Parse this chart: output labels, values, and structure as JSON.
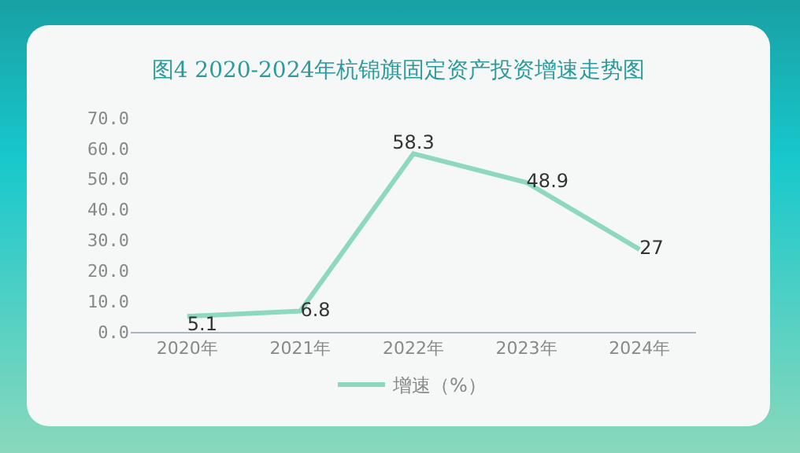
{
  "chart_data": {
    "type": "line",
    "title": "图4 2020-2024年杭锦旗固定资产投资增速走势图",
    "categories": [
      "2020年",
      "2021年",
      "2022年",
      "2023年",
      "2024年"
    ],
    "series": [
      {
        "name": "增速（%）",
        "color": "#8ed8c0",
        "values": [
          5.1,
          6.8,
          58.3,
          48.9,
          27
        ]
      }
    ],
    "ylim": [
      0,
      70
    ],
    "yticks": [
      {
        "value": 0,
        "label": "0.0"
      },
      {
        "value": 10,
        "label": "10.0"
      },
      {
        "value": 20,
        "label": "20.0"
      },
      {
        "value": 30,
        "label": "30.0"
      },
      {
        "value": 40,
        "label": "40.0"
      },
      {
        "value": 50,
        "label": "50.0"
      },
      {
        "value": 60,
        "label": "60.0"
      },
      {
        "value": 70,
        "label": "70.0"
      }
    ],
    "grid": false,
    "legend": "bottom",
    "marker": "none",
    "line_style": "solid",
    "data_labels": true
  }
}
